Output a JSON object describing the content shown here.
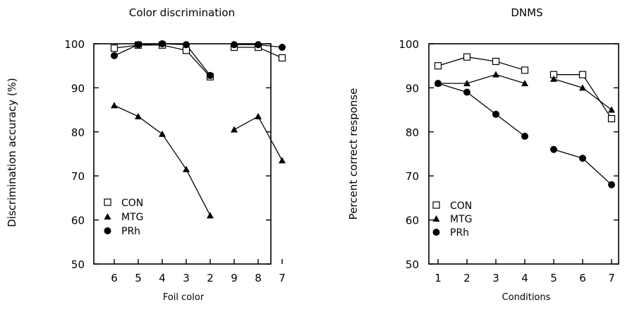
{
  "chart_data": [
    {
      "type": "line",
      "title": "Color discrimination",
      "xlabel": "Foil color",
      "ylabel": "Discrimination accuracy (%)",
      "categories": [
        "6",
        "5",
        "4",
        "3",
        "2",
        "9",
        "8",
        "7"
      ],
      "ylim": [
        50,
        100
      ],
      "yticks": [
        50,
        60,
        70,
        80,
        90,
        100
      ],
      "legend_position": "bottom-left",
      "grid": false,
      "series": [
        {
          "name": "CON",
          "marker": "open-square",
          "segments": [
            [
              0,
              4
            ],
            [
              5,
              7
            ]
          ],
          "values": [
            99,
            99.7,
            99.7,
            98.5,
            92.5,
            99.2,
            99.2,
            96.8
          ]
        },
        {
          "name": "MTG",
          "marker": "filled-triangle",
          "segments": [
            [
              0,
              4
            ],
            [
              5,
              7
            ]
          ],
          "values": [
            86,
            83.5,
            79.5,
            71.5,
            61,
            80.5,
            83.5,
            73.5
          ]
        },
        {
          "name": "PRh",
          "marker": "filled-circle",
          "segments": [
            [
              0,
              4
            ],
            [
              5,
              7
            ]
          ],
          "values": [
            97.3,
            99.8,
            100,
            99.8,
            92.8,
            99.8,
            99.8,
            99.2
          ]
        }
      ]
    },
    {
      "type": "line",
      "title": "DNMS",
      "xlabel": "Conditions",
      "ylabel": "Percent correct response",
      "categories": [
        "1",
        "2",
        "3",
        "4",
        "5",
        "6",
        "7"
      ],
      "ylim": [
        50,
        100
      ],
      "yticks": [
        50,
        60,
        70,
        80,
        90,
        100
      ],
      "legend_position": "bottom-left",
      "grid": false,
      "series": [
        {
          "name": "CON",
          "marker": "open-square",
          "segments": [
            [
              0,
              3
            ],
            [
              4,
              6
            ]
          ],
          "values": [
            95,
            97,
            96,
            94,
            93,
            93,
            83
          ]
        },
        {
          "name": "MTG",
          "marker": "filled-triangle",
          "segments": [
            [
              0,
              3
            ],
            [
              4,
              6
            ]
          ],
          "values": [
            91,
            91,
            93,
            91,
            92,
            90,
            85
          ]
        },
        {
          "name": "PRh",
          "marker": "filled-circle",
          "segments": [
            [
              0,
              3
            ],
            [
              4,
              6
            ]
          ],
          "values": [
            91,
            89,
            84,
            79,
            76,
            74,
            68
          ]
        }
      ]
    }
  ]
}
